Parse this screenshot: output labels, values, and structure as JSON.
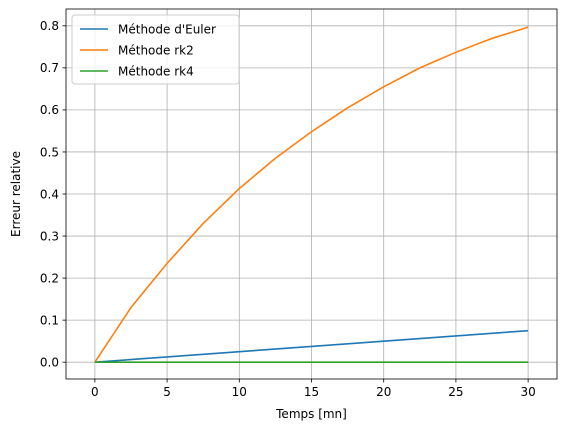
{
  "chart_data": {
    "type": "line",
    "title": "",
    "xlabel": "Temps [mn]",
    "ylabel": "Erreur relative",
    "xlim": [
      -2,
      32
    ],
    "ylim": [
      -0.04,
      0.84
    ],
    "xticks": [
      0,
      5,
      10,
      15,
      20,
      25,
      30
    ],
    "yticks": [
      0.0,
      0.1,
      0.2,
      0.3,
      0.4,
      0.5,
      0.6,
      0.7,
      0.8
    ],
    "xtick_labels": [
      "0",
      "5",
      "10",
      "15",
      "20",
      "25",
      "30"
    ],
    "ytick_labels": [
      "0.0",
      "0.1",
      "0.2",
      "0.3",
      "0.4",
      "0.5",
      "0.6",
      "0.7",
      "0.8"
    ],
    "grid": true,
    "legend_position": "upper-left",
    "series": [
      {
        "name": "Méthode d'Euler",
        "color": "#1f77b4",
        "x": [
          0,
          5,
          10,
          15,
          20,
          25,
          30
        ],
        "y": [
          0.0,
          0.0125,
          0.025,
          0.0375,
          0.05,
          0.0625,
          0.075
        ]
      },
      {
        "name": "Méthode rk2",
        "color": "#ff7f0e",
        "x": [
          0,
          2.5,
          5,
          7.5,
          10,
          12.5,
          15,
          17.5,
          20,
          22.5,
          25,
          27.5,
          30
        ],
        "y": [
          0.0,
          0.13,
          0.235,
          0.33,
          0.413,
          0.485,
          0.548,
          0.605,
          0.655,
          0.7,
          0.737,
          0.77,
          0.797
        ]
      },
      {
        "name": "Méthode rk4",
        "color": "#2ca02c",
        "x": [
          0,
          5,
          10,
          15,
          20,
          25,
          30
        ],
        "y": [
          0.0,
          0.0,
          0.0,
          0.0,
          0.0,
          0.0,
          0.0
        ]
      }
    ]
  }
}
